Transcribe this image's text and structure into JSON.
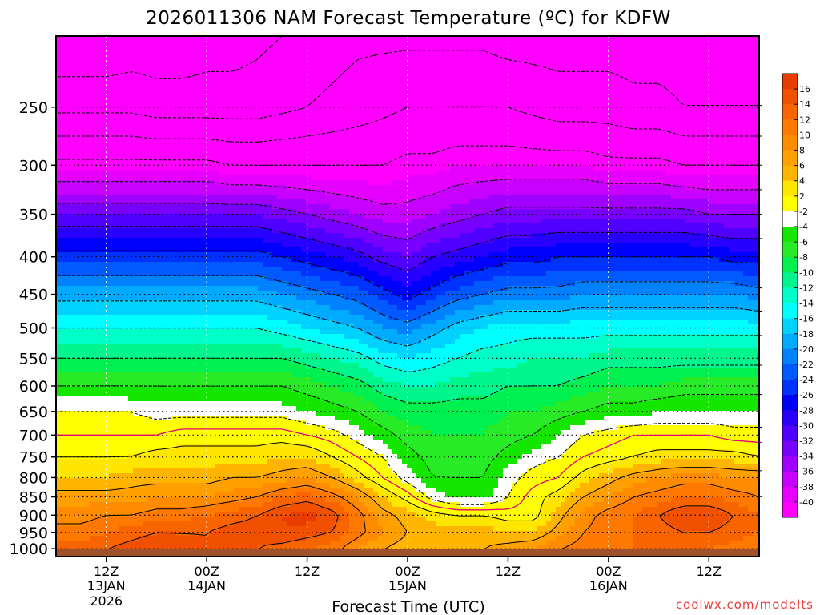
{
  "chart_data": {
    "type": "heatmap",
    "title": "2026011306 NAM Forecast Temperature (ºC) for KDFW",
    "xlabel": "Forecast Time (UTC)",
    "ylabel": "",
    "credit": "coolwx.com/modelts",
    "x_ticks": [
      {
        "top": "12Z",
        "mid": "13JAN",
        "bot": "2026",
        "hour": 6
      },
      {
        "top": "00Z",
        "mid": "14JAN",
        "bot": "",
        "hour": 18
      },
      {
        "top": "12Z",
        "mid": "",
        "bot": "",
        "hour": 30
      },
      {
        "top": "00Z",
        "mid": "15JAN",
        "bot": "",
        "hour": 42
      },
      {
        "top": "12Z",
        "mid": "",
        "bot": "",
        "hour": 54
      },
      {
        "top": "00Z",
        "mid": "16JAN",
        "bot": "",
        "hour": 66
      },
      {
        "top": "12Z",
        "mid": "",
        "bot": "",
        "hour": 78
      }
    ],
    "x_range_hours": [
      0,
      84
    ],
    "y_ticks": [
      250,
      300,
      350,
      400,
      450,
      500,
      550,
      600,
      650,
      700,
      750,
      800,
      850,
      900,
      950,
      1000
    ],
    "y_range_hPa": [
      200,
      1025
    ],
    "y_scale": "log-pressure",
    "grid": true,
    "colorbar": {
      "labels": [
        "16",
        "14",
        "12",
        "10",
        "8",
        "6",
        "4",
        "2",
        "-2",
        "-4",
        "-6",
        "-8",
        "-10",
        "-12",
        "-14",
        "-16",
        "-18",
        "-20",
        "-22",
        "-24",
        "-26",
        "-28",
        "-30",
        "-32",
        "-34",
        "-36",
        "-38",
        "-40"
      ],
      "bins": [
        {
          "max": 18,
          "color": "#e83c00"
        },
        {
          "max": 16,
          "color": "#f05000"
        },
        {
          "max": 14,
          "color": "#f86400"
        },
        {
          "max": 12,
          "color": "#ff7800"
        },
        {
          "max": 10,
          "color": "#ff8c00"
        },
        {
          "max": 8,
          "color": "#ffa000"
        },
        {
          "max": 6,
          "color": "#ffb400"
        },
        {
          "max": 4,
          "color": "#ffe600"
        },
        {
          "max": 2,
          "color": "#ffff00"
        },
        {
          "max": -2,
          "color": "#ffffff"
        },
        {
          "max": -4,
          "color": "#14e600"
        },
        {
          "max": -6,
          "color": "#28eb28"
        },
        {
          "max": -8,
          "color": "#00f050"
        },
        {
          "max": -10,
          "color": "#00f58c"
        },
        {
          "max": -12,
          "color": "#00ffc8"
        },
        {
          "max": -14,
          "color": "#00ffff"
        },
        {
          "max": -16,
          "color": "#00d2ff"
        },
        {
          "max": -18,
          "color": "#00aaff"
        },
        {
          "max": -20,
          "color": "#0082ff"
        },
        {
          "max": -22,
          "color": "#005aff"
        },
        {
          "max": -24,
          "color": "#0032ff"
        },
        {
          "max": -26,
          "color": "#0000ff"
        },
        {
          "max": -28,
          "color": "#2800ff"
        },
        {
          "max": -30,
          "color": "#5000ff"
        },
        {
          "max": -32,
          "color": "#7800ff"
        },
        {
          "max": -34,
          "color": "#a000ff"
        },
        {
          "max": -36,
          "color": "#c800ff"
        },
        {
          "max": -38,
          "color": "#e600ff"
        },
        {
          "max": -40,
          "color": "#ff00ff"
        }
      ]
    },
    "freezing_line_color": "#e6007e",
    "ground_color": "#a0522d",
    "series": [
      {
        "hPa": 1000,
        "values": [
          13,
          13,
          14,
          15,
          16,
          15,
          14,
          14,
          14,
          13,
          12,
          11,
          8,
          6,
          5,
          5,
          6,
          6,
          7,
          8,
          10,
          11,
          11,
          12,
          13,
          13,
          12,
          11,
          10
        ]
      },
      {
        "hPa": 950,
        "values": [
          11,
          11,
          12,
          13,
          14,
          14,
          14,
          15,
          15,
          16,
          15,
          14,
          11,
          8,
          6,
          5,
          5,
          5,
          4,
          4,
          7,
          10,
          11,
          12,
          13,
          14,
          14,
          13,
          12
        ]
      },
      {
        "hPa": 900,
        "values": [
          9,
          9,
          10,
          10,
          11,
          11,
          12,
          13,
          14,
          16,
          17,
          15,
          11,
          7,
          5,
          3,
          2,
          2,
          1,
          1,
          5,
          9,
          11,
          12,
          14,
          16,
          16,
          14,
          12
        ]
      },
      {
        "hPa": 850,
        "values": [
          7,
          7,
          7,
          7,
          8,
          8,
          8,
          9,
          10,
          12,
          13,
          11,
          8,
          4,
          1,
          -3,
          -5,
          -5,
          -2,
          1,
          3,
          6,
          8,
          10,
          11,
          12,
          12,
          11,
          10
        ]
      },
      {
        "hPa": 800,
        "values": [
          4,
          4,
          4,
          5,
          5,
          5,
          5,
          6,
          6,
          7,
          8,
          6,
          3,
          0,
          -3,
          -6,
          -6,
          -6,
          -3,
          -1,
          0,
          3,
          5,
          7,
          8,
          9,
          9,
          8,
          8
        ]
      },
      {
        "hPa": 750,
        "values": [
          2,
          2,
          2,
          2,
          3,
          3,
          3,
          3,
          3,
          4,
          4,
          2,
          0,
          -2,
          -5,
          -7,
          -7,
          -7,
          -5,
          -3,
          -2,
          0,
          1,
          2,
          3,
          3,
          3,
          3,
          2
        ]
      },
      {
        "hPa": 700,
        "values": [
          0,
          0,
          0,
          0,
          0,
          1,
          1,
          1,
          1,
          1,
          0,
          -1,
          -3,
          -5,
          -7,
          -8,
          -8,
          -8,
          -7,
          -6,
          -4,
          -2,
          -1,
          0,
          0,
          0,
          0,
          -1,
          -1
        ]
      },
      {
        "hPa": 650,
        "values": [
          -2,
          -2,
          -2,
          -2,
          -3,
          -3,
          -3,
          -3,
          -3,
          -3,
          -4,
          -5,
          -6,
          -8,
          -9,
          -9,
          -9,
          -9,
          -8,
          -8,
          -7,
          -6,
          -5,
          -5,
          -4,
          -4,
          -4,
          -4,
          -4
        ]
      },
      {
        "hPa": 600,
        "values": [
          -6,
          -6,
          -6,
          -6,
          -6,
          -6,
          -6,
          -6,
          -6,
          -6,
          -7,
          -8,
          -9,
          -11,
          -12,
          -12,
          -11,
          -11,
          -10,
          -10,
          -10,
          -9,
          -8,
          -8,
          -8,
          -7,
          -7,
          -7,
          -7
        ]
      },
      {
        "hPa": 550,
        "values": [
          -10,
          -10,
          -10,
          -10,
          -10,
          -10,
          -10,
          -10,
          -10,
          -10,
          -11,
          -12,
          -13,
          -15,
          -16,
          -15,
          -14,
          -13,
          -13,
          -12,
          -12,
          -12,
          -11,
          -11,
          -11,
          -11,
          -11,
          -11,
          -11
        ]
      },
      {
        "hPa": 500,
        "values": [
          -14,
          -14,
          -14,
          -14,
          -14,
          -14,
          -14,
          -14,
          -14,
          -15,
          -16,
          -17,
          -18,
          -20,
          -21,
          -19,
          -17,
          -16,
          -15,
          -15,
          -15,
          -15,
          -15,
          -15,
          -15,
          -15,
          -15,
          -15,
          -15
        ]
      },
      {
        "hPa": 450,
        "values": [
          -19,
          -19,
          -19,
          -19,
          -19,
          -19,
          -19,
          -19,
          -19,
          -20,
          -21,
          -22,
          -23,
          -25,
          -27,
          -25,
          -23,
          -22,
          -21,
          -21,
          -21,
          -20,
          -20,
          -20,
          -20,
          -20,
          -20,
          -20,
          -21
        ]
      },
      {
        "hPa": 400,
        "values": [
          -25,
          -25,
          -25,
          -25,
          -25,
          -25,
          -25,
          -25,
          -25,
          -26,
          -27,
          -28,
          -29,
          -31,
          -32,
          -30,
          -29,
          -28,
          -27,
          -27,
          -26,
          -26,
          -26,
          -26,
          -26,
          -26,
          -26,
          -27,
          -27
        ]
      },
      {
        "hPa": 350,
        "values": [
          -32,
          -32,
          -32,
          -32,
          -32,
          -32,
          -32,
          -32,
          -32,
          -33,
          -34,
          -35,
          -36,
          -37,
          -37,
          -36,
          -35,
          -34,
          -33,
          -33,
          -33,
          -33,
          -33,
          -33,
          -33,
          -33,
          -34,
          -34,
          -34
        ]
      },
      {
        "hPa": 300,
        "values": [
          -41,
          -41,
          -41,
          -41,
          -41,
          -41,
          -41,
          -42,
          -42,
          -42,
          -42,
          -42,
          -42,
          -42,
          -41,
          -41,
          -40,
          -40,
          -40,
          -40,
          -40,
          -40,
          -41,
          -41,
          -41,
          -42,
          -42,
          -42,
          -42
        ]
      },
      {
        "hPa": 250,
        "values": [
          -51,
          -51,
          -51,
          -51,
          -52,
          -52,
          -52,
          -52,
          -52,
          -51,
          -50,
          -49,
          -48,
          -47,
          -46,
          -46,
          -46,
          -46,
          -46,
          -47,
          -48,
          -48,
          -48,
          -49,
          -49,
          -50,
          -50,
          -50,
          -50
        ]
      },
      {
        "hPa": 200,
        "values": [
          -58,
          -58,
          -58,
          -57,
          -57,
          -57,
          -56,
          -56,
          -55,
          -54,
          -53,
          -52,
          -51,
          -51,
          -51,
          -51,
          -51,
          -51,
          -52,
          -52,
          -52,
          -52,
          -52,
          -52,
          -52,
          -52,
          -52,
          -52,
          -52
        ]
      }
    ],
    "hours": [
      0,
      3,
      6,
      9,
      12,
      15,
      18,
      21,
      24,
      27,
      30,
      33,
      36,
      39,
      42,
      45,
      48,
      51,
      54,
      57,
      60,
      63,
      66,
      69,
      72,
      75,
      78,
      81,
      84
    ]
  }
}
